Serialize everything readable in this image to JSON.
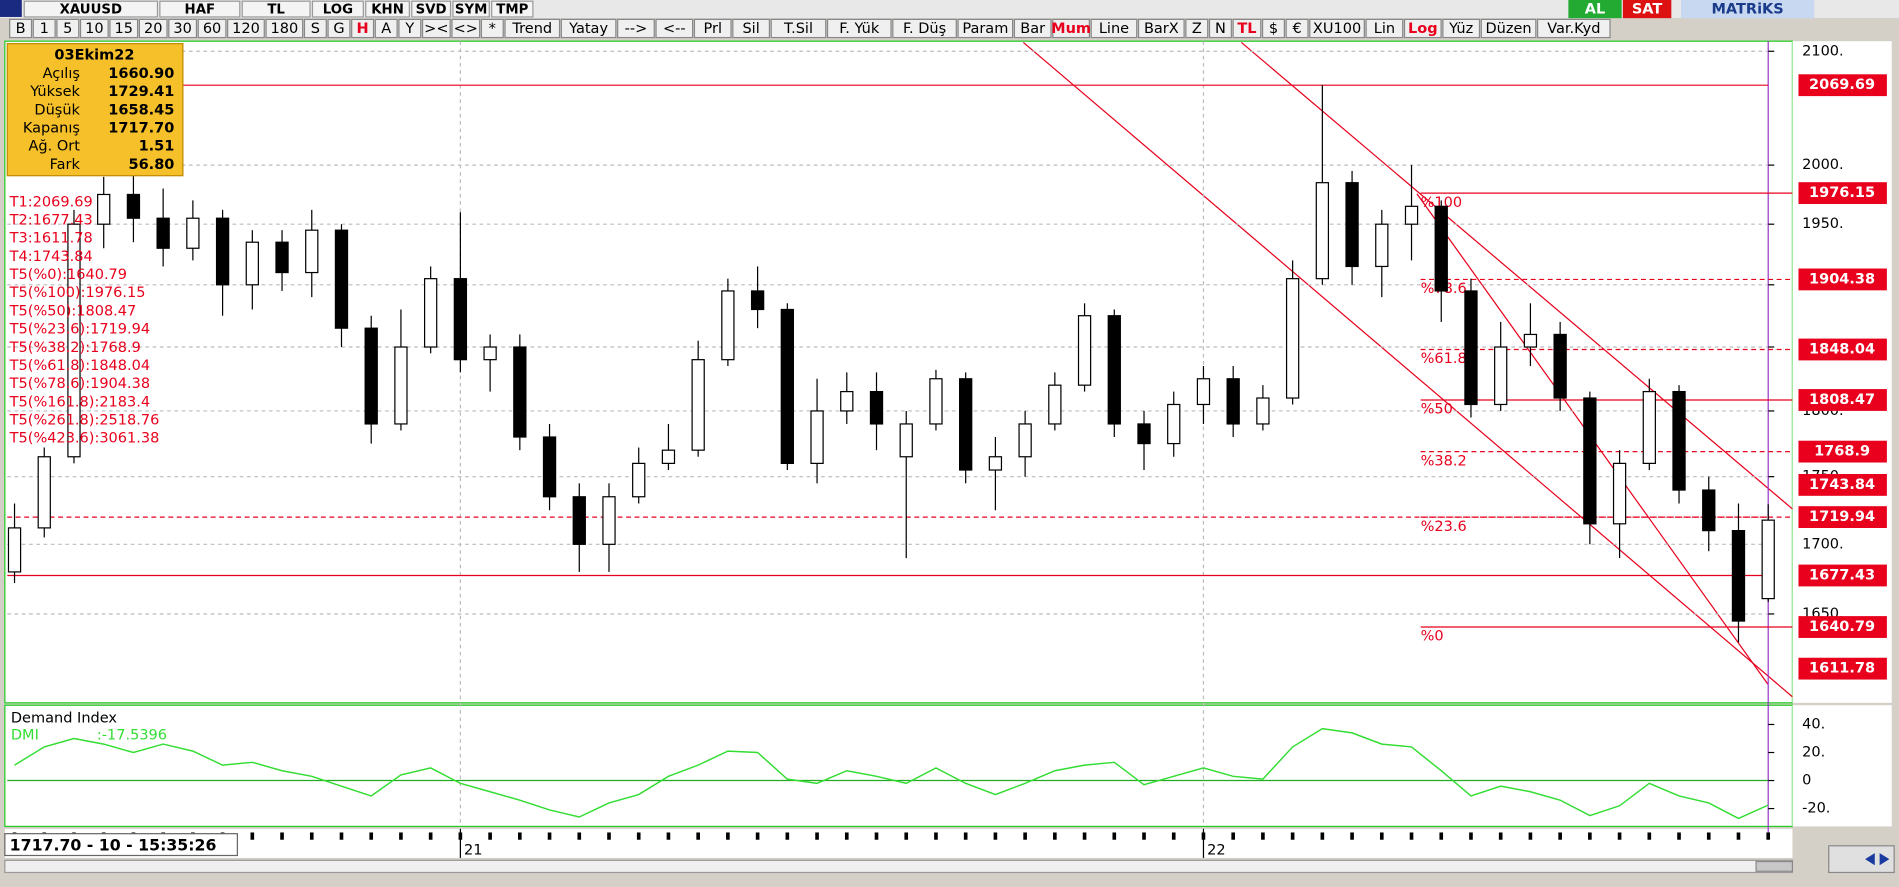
{
  "toolbar": {
    "top": [
      "XAUUSD",
      "HAF",
      "TL",
      "LOG",
      "KHN",
      "SVD",
      "SYM",
      "TMP"
    ],
    "right": [
      "AL",
      "SAT",
      "MATRiKS"
    ],
    "items": [
      {
        "label": "B"
      },
      {
        "label": "1"
      },
      {
        "label": "5"
      },
      {
        "label": "10"
      },
      {
        "label": "15"
      },
      {
        "label": "20"
      },
      {
        "label": "30"
      },
      {
        "label": "60"
      },
      {
        "label": "120"
      },
      {
        "label": "180"
      },
      {
        "label": "S"
      },
      {
        "label": "G"
      },
      {
        "label": "H",
        "active": true
      },
      {
        "label": "A"
      },
      {
        "label": "Y"
      },
      {
        "label": "><"
      },
      {
        "label": "<>"
      },
      {
        "label": "*"
      },
      {
        "label": "Trend"
      },
      {
        "label": "Yatay"
      },
      {
        "label": "-->"
      },
      {
        "label": "<--"
      },
      {
        "label": "Prl"
      },
      {
        "label": "Sil"
      },
      {
        "label": "T.Sil"
      },
      {
        "label": "F. Yük"
      },
      {
        "label": "F. Düş"
      },
      {
        "label": "Param"
      },
      {
        "label": "Bar"
      },
      {
        "label": "Mum",
        "active": true
      },
      {
        "label": "Line"
      },
      {
        "label": "BarX"
      },
      {
        "label": "Z"
      },
      {
        "label": "N"
      },
      {
        "label": "TL",
        "active": true
      },
      {
        "label": "$"
      },
      {
        "label": "€"
      },
      {
        "label": "XU100"
      },
      {
        "label": "Lin"
      },
      {
        "label": "Log",
        "active": true
      },
      {
        "label": "Yüz"
      },
      {
        "label": "Düzen"
      },
      {
        "label": "Var.Kyd"
      }
    ]
  },
  "info_box": {
    "date": "03Ekim22",
    "rows": [
      [
        "Açılış",
        "1660.90"
      ],
      [
        "Yüksek",
        "1729.41"
      ],
      [
        "Düşük",
        "1658.45"
      ],
      [
        "Kapanış",
        "1717.70"
      ],
      [
        "Ağ. Ort",
        "1.51"
      ],
      [
        "Fark",
        "56.80"
      ]
    ]
  },
  "annotations": [
    "T1:2069.69",
    "T2:1677.43",
    "T3:1611.78",
    "T4:1743.84",
    "T5(%0):1640.79",
    "T5(%100):1976.15",
    "T5(%50):1808.47",
    "T5(%23.6):1719.94",
    "T5(%38.2):1768.9",
    "T5(%61.8):1848.04",
    "T5(%78.6):1904.38",
    "T5(%161.8):2183.4",
    "T5(%261.8):2518.76",
    "T5(%423.6):3061.38"
  ],
  "status": "1717.70 - 10 - 15:35:26",
  "chart_data": [
    {
      "type": "candlestick",
      "categories": [
        null,
        null,
        null,
        null,
        null,
        null,
        null,
        null,
        null,
        null,
        null,
        null,
        null,
        null,
        null,
        "21",
        null,
        null,
        null,
        null,
        null,
        null,
        null,
        null,
        null,
        null,
        null,
        null,
        null,
        null,
        null,
        null,
        null,
        null,
        null,
        null,
        null,
        null,
        null,
        null,
        "22",
        null,
        null,
        null,
        null,
        null,
        null,
        null,
        null,
        null,
        null,
        null,
        null,
        null,
        null,
        null,
        null,
        null,
        null,
        null
      ],
      "open": [
        1680,
        1712,
        1765,
        1950,
        1975,
        1955,
        1930,
        1955,
        1900,
        1935,
        1910,
        1945,
        1865,
        1790,
        1850,
        1905,
        1840,
        1850,
        1780,
        1735,
        1700,
        1735,
        1760,
        1770,
        1840,
        1895,
        1880,
        1760,
        1800,
        1815,
        1765,
        1790,
        1825,
        1755,
        1765,
        1790,
        1820,
        1875,
        1790,
        1775,
        1805,
        1825,
        1790,
        1810,
        1905,
        1985,
        1915,
        1950,
        1965,
        1895,
        1805,
        1850,
        1860,
        1810,
        1715,
        1760,
        1815,
        1740,
        1710,
        1660.9
      ],
      "high": [
        1730,
        1772,
        1962,
        1990,
        1995,
        1980,
        1970,
        1962,
        1945,
        1945,
        1962,
        1950,
        1875,
        1880,
        1915,
        1960,
        1860,
        1860,
        1790,
        1745,
        1745,
        1772,
        1790,
        1855,
        1905,
        1915,
        1885,
        1825,
        1830,
        1830,
        1800,
        1832,
        1830,
        1780,
        1800,
        1830,
        1885,
        1880,
        1800,
        1815,
        1835,
        1835,
        1820,
        1920,
        2070,
        1995,
        1962,
        2000,
        1970,
        1905,
        1870,
        1885,
        1870,
        1815,
        1770,
        1825,
        1820,
        1750,
        1730,
        1729.41
      ],
      "low": [
        1672,
        1705,
        1760,
        1930,
        1935,
        1915,
        1920,
        1875,
        1880,
        1895,
        1890,
        1850,
        1775,
        1785,
        1845,
        1830,
        1815,
        1770,
        1725,
        1680,
        1680,
        1730,
        1755,
        1765,
        1835,
        1865,
        1755,
        1745,
        1790,
        1770,
        1690,
        1785,
        1745,
        1725,
        1750,
        1785,
        1815,
        1780,
        1755,
        1765,
        1790,
        1780,
        1785,
        1805,
        1900,
        1900,
        1890,
        1920,
        1870,
        1795,
        1800,
        1835,
        1800,
        1700,
        1690,
        1755,
        1730,
        1695,
        1630,
        1658.45
      ],
      "close": [
        1712,
        1765,
        1950,
        1975,
        1955,
        1930,
        1955,
        1900,
        1935,
        1910,
        1945,
        1865,
        1790,
        1850,
        1905,
        1840,
        1850,
        1780,
        1735,
        1700,
        1735,
        1760,
        1770,
        1840,
        1895,
        1880,
        1760,
        1800,
        1815,
        1790,
        1790,
        1825,
        1755,
        1765,
        1790,
        1820,
        1875,
        1790,
        1775,
        1805,
        1825,
        1790,
        1810,
        1905,
        1985,
        1915,
        1950,
        1965,
        1895,
        1805,
        1850,
        1860,
        1810,
        1715,
        1760,
        1815,
        1740,
        1710,
        1645,
        1717.7
      ],
      "ylim": [
        1590,
        2108
      ],
      "log_scale": true,
      "grid": true,
      "yticks": [
        {
          "value": 2100,
          "label": "2100."
        },
        {
          "value": 2000,
          "label": "2000."
        },
        {
          "value": 1950,
          "label": "1950."
        },
        {
          "value": 1900,
          "label": "1900."
        },
        {
          "value": 1850,
          "label": "1850."
        },
        {
          "value": 1800,
          "label": "1800."
        },
        {
          "value": 1750,
          "label": "1750."
        },
        {
          "value": 1700,
          "label": "1700."
        },
        {
          "value": 1650,
          "label": "1650."
        }
      ],
      "up_color": "#ffffff",
      "down_color": "#000000",
      "line_color": "#e8001c",
      "levels": [
        {
          "value": 2069.69,
          "style": "solid"
        },
        {
          "value": 1677.43,
          "style": "solid"
        },
        {
          "value": 1719.94,
          "style": "dashed"
        }
      ],
      "fib_levels": [
        {
          "label": "%100",
          "value": 1976.15,
          "style": "solid"
        },
        {
          "label": "%78.6",
          "value": 1904.38,
          "style": "dashed"
        },
        {
          "label": "%61.8",
          "value": 1848.04,
          "style": "dashed"
        },
        {
          "label": "%50",
          "value": 1808.47,
          "style": "solid"
        },
        {
          "label": "%38.2",
          "value": 1768.9,
          "style": "dashed"
        },
        {
          "label": "%23.6",
          "value": 1719.94,
          "style": "dashed"
        },
        {
          "label": "%0",
          "value": 1640.79,
          "style": "solid"
        }
      ],
      "price_labels": [
        2069.69,
        1976.15,
        1904.38,
        1848.04,
        1808.47,
        1768.9,
        1743.84,
        1719.94,
        1677.43,
        1640.79,
        1611.78
      ]
    },
    {
      "type": "line",
      "title": "Demand Index",
      "ylim": [
        -31,
        52
      ],
      "yticks": [
        {
          "value": 40,
          "label": "40."
        },
        {
          "value": 20,
          "label": "20."
        },
        0,
        {
          "value": -20,
          "label": "-20."
        }
      ],
      "series": [
        {
          "name": "DMI",
          "readout": ":-17.5396",
          "color": "#33dd33",
          "values": [
            11,
            24,
            30,
            26,
            20,
            26,
            21,
            11,
            13,
            7,
            3,
            -4,
            -11,
            4,
            9,
            -2,
            -8,
            -14,
            -21,
            -26,
            -16,
            -10,
            3,
            11,
            21,
            20,
            1,
            -2,
            7,
            3,
            -2,
            9,
            -2,
            -10,
            -2,
            7,
            11,
            13,
            -3,
            3,
            9,
            3,
            1,
            24,
            37,
            34,
            26,
            24,
            7,
            -11,
            -4,
            -8,
            -14,
            -25,
            -18,
            -2,
            -11,
            -16,
            -27,
            -17.5396
          ]
        }
      ]
    }
  ]
}
